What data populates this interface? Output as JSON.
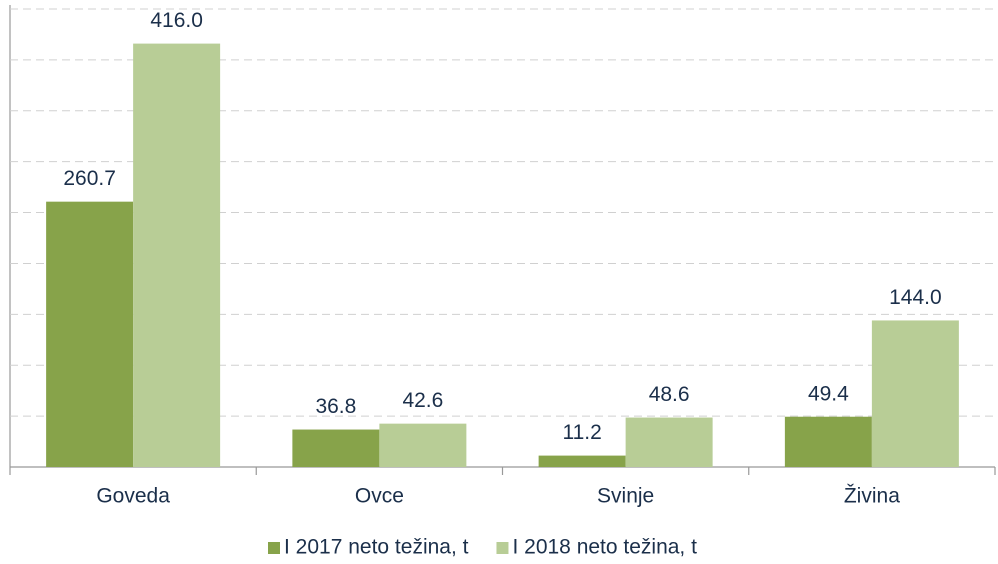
{
  "chart_data": {
    "type": "bar",
    "categories": [
      "Goveda",
      "Ovce",
      "Svinje",
      "Živina"
    ],
    "series": [
      {
        "name": "I 2017 neto težina, t",
        "color": "#87a34a",
        "values": [
          260.7,
          36.8,
          11.2,
          49.4
        ],
        "value_labels": [
          "260.7",
          "36.8",
          "11.2",
          "49.4"
        ]
      },
      {
        "name": "I 2018 neto težina, t",
        "color": "#b8cd96",
        "values": [
          416.0,
          42.6,
          48.6,
          144.0
        ],
        "value_labels": [
          "416.0",
          "42.6",
          "48.6",
          "144.0"
        ]
      }
    ],
    "ylim": [
      0,
      450
    ],
    "yticks": [
      0,
      50,
      100,
      150,
      200,
      250,
      300,
      350,
      400,
      450
    ],
    "grid": true,
    "legend": "bottom"
  }
}
